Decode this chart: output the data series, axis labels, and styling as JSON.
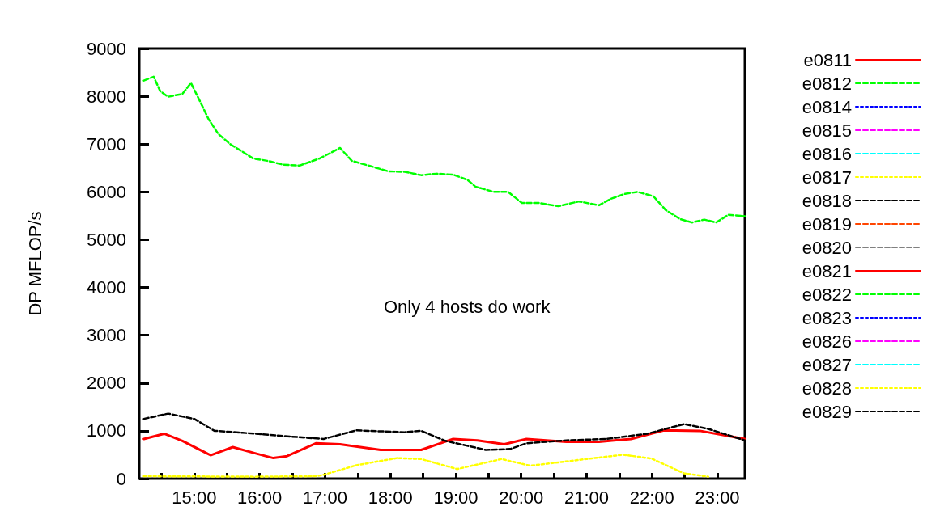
{
  "chart_data": {
    "type": "line",
    "ylabel": "DP MFLOP/s",
    "annotations": [
      "Only 4 hosts do work"
    ],
    "xlim": [
      14.16,
      23.42
    ],
    "xticks": [
      {
        "value": 14.5,
        "label": null
      },
      {
        "value": 15,
        "label": "15:00"
      },
      {
        "value": 15.5,
        "label": null
      },
      {
        "value": 16,
        "label": "16:00"
      },
      {
        "value": 16.5,
        "label": null
      },
      {
        "value": 17,
        "label": "17:00"
      },
      {
        "value": 17.5,
        "label": null
      },
      {
        "value": 18,
        "label": "18:00"
      },
      {
        "value": 18.5,
        "label": null
      },
      {
        "value": 19,
        "label": "19:00"
      },
      {
        "value": 19.5,
        "label": null
      },
      {
        "value": 20,
        "label": "20:00"
      },
      {
        "value": 20.5,
        "label": null
      },
      {
        "value": 21,
        "label": "21:00"
      },
      {
        "value": 21.5,
        "label": null
      },
      {
        "value": 22,
        "label": "22:00"
      },
      {
        "value": 22.5,
        "label": null
      },
      {
        "value": 23,
        "label": "23:00"
      }
    ],
    "ylim": [
      0,
      9000
    ],
    "yticks": [
      0,
      1000,
      2000,
      3000,
      4000,
      5000,
      6000,
      7000,
      8000,
      9000
    ],
    "grid": false,
    "legend": "right",
    "marker": "none",
    "series": [
      {
        "name": "e0811",
        "color": "#ff0000",
        "line_style": "solid"
      },
      {
        "name": "e0812",
        "color": "#00ff00",
        "line_style": "dashed"
      },
      {
        "name": "e0814",
        "color": "#0000ff",
        "line_style": "dotted"
      },
      {
        "name": "e0815",
        "color": "#ff00ff",
        "line_style": "dashed"
      },
      {
        "name": "e0816",
        "color": "#00ffff",
        "line_style": "dashed"
      },
      {
        "name": "e0817",
        "color": "#ffff00",
        "line_style": "dotted"
      },
      {
        "name": "e0818",
        "color": "#000000",
        "line_style": "dashed"
      },
      {
        "name": "e0819",
        "color": "#ff4500",
        "line_style": "dashed"
      },
      {
        "name": "e0820",
        "color": "#808080",
        "line_style": "dashed"
      },
      {
        "name": "e0821",
        "color": "#ff0000",
        "line_style": "solid",
        "x": [
          14.23,
          14.54,
          14.82,
          15.25,
          15.59,
          15.93,
          16.21,
          16.42,
          16.86,
          17.23,
          17.85,
          18.47,
          18.96,
          19.33,
          19.74,
          20.08,
          20.69,
          21.19,
          21.68,
          22.18,
          22.73,
          23.42
        ],
        "values": [
          830,
          940,
          790,
          490,
          660,
          530,
          430,
          470,
          740,
          720,
          600,
          600,
          830,
          800,
          720,
          830,
          770,
          770,
          830,
          1010,
          1000,
          830
        ]
      },
      {
        "name": "e0822",
        "color": "#00ff00",
        "line_style": "dashed",
        "x": [
          14.23,
          14.38,
          14.48,
          14.6,
          14.82,
          14.95,
          15.13,
          15.22,
          15.37,
          15.56,
          15.74,
          15.9,
          16.12,
          16.36,
          16.61,
          16.92,
          17.23,
          17.41,
          17.72,
          17.97,
          18.22,
          18.47,
          18.71,
          18.96,
          19.18,
          19.3,
          19.58,
          19.8,
          20.01,
          20.26,
          20.57,
          20.88,
          21.19,
          21.38,
          21.59,
          21.78,
          22.02,
          22.21,
          22.43,
          22.61,
          22.8,
          22.98,
          23.17,
          23.42
        ],
        "values": [
          8330,
          8410,
          8110,
          7990,
          8050,
          8280,
          7780,
          7520,
          7210,
          6990,
          6840,
          6700,
          6650,
          6570,
          6550,
          6700,
          6920,
          6650,
          6530,
          6430,
          6420,
          6350,
          6380,
          6360,
          6250,
          6110,
          6000,
          6000,
          5770,
          5770,
          5700,
          5800,
          5720,
          5860,
          5960,
          6000,
          5910,
          5620,
          5430,
          5360,
          5420,
          5360,
          5520,
          5490
        ]
      },
      {
        "name": "e0823",
        "color": "#0000ff",
        "line_style": "dotted"
      },
      {
        "name": "e0826",
        "color": "#ff00ff",
        "line_style": "dashed"
      },
      {
        "name": "e0827",
        "color": "#00ffff",
        "line_style": "dashed"
      },
      {
        "name": "e0828",
        "color": "#ffff00",
        "line_style": "dotted",
        "x": [
          14.23,
          15.93,
          16.86,
          16.98,
          17.48,
          18.1,
          18.47,
          19.02,
          19.7,
          20.14,
          21.0,
          21.56,
          21.99,
          22.49,
          22.86
        ],
        "values": [
          50,
          40,
          50,
          80,
          280,
          430,
          410,
          200,
          410,
          270,
          410,
          500,
          420,
          110,
          40
        ]
      },
      {
        "name": "e0829",
        "color": "#000000",
        "line_style": "dashed",
        "x": [
          14.23,
          14.6,
          15.0,
          15.31,
          15.74,
          16.36,
          16.98,
          17.48,
          18.22,
          18.47,
          18.84,
          19.46,
          19.83,
          20.08,
          20.69,
          21.31,
          21.93,
          22.49,
          22.86,
          23.42
        ],
        "values": [
          1250,
          1360,
          1250,
          1000,
          960,
          890,
          830,
          1010,
          970,
          1000,
          790,
          600,
          620,
          740,
          800,
          830,
          940,
          1140,
          1040,
          800
        ]
      }
    ]
  }
}
